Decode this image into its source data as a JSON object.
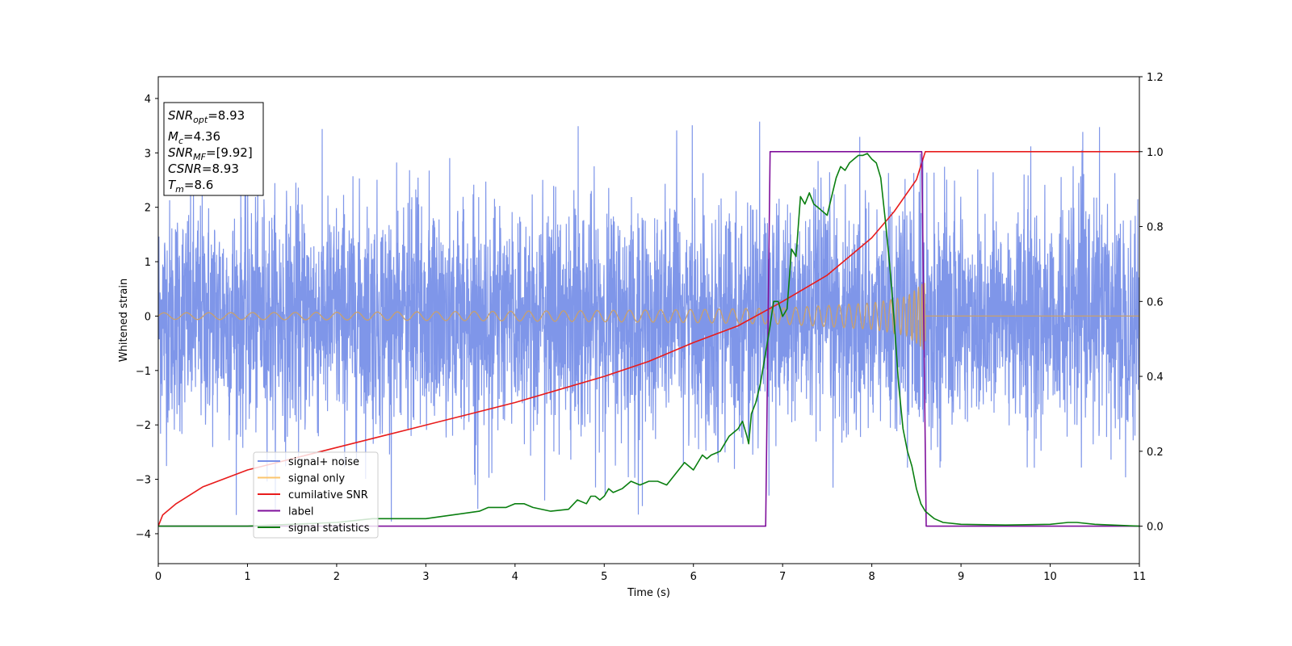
{
  "chart_data": {
    "type": "line",
    "xlabel": "Time (s)",
    "ylabel": "Whitened strain",
    "xlim": [
      0,
      11
    ],
    "ylim_left": [
      -4.55,
      4.4
    ],
    "ylim_right": [
      -0.1,
      1.2
    ],
    "x_ticks": [
      "0",
      "1",
      "2",
      "3",
      "4",
      "5",
      "6",
      "7",
      "8",
      "9",
      "10",
      "11"
    ],
    "y_left_ticks": [
      "4",
      "3",
      "2",
      "1",
      "0",
      "−1",
      "−2",
      "−3",
      "−4"
    ],
    "y_right_ticks": [
      "1.2",
      "1.0",
      "0.8",
      "0.6",
      "0.4",
      "0.2",
      "0.0"
    ],
    "legend": {
      "location": "lower-left",
      "entries": [
        {
          "label": "signal+ noise",
          "color": "#7890e8"
        },
        {
          "label": "signal only",
          "color": "#fbc46e"
        },
        {
          "label": "cumilative SNR",
          "color": "#e81c1c"
        },
        {
          "label": "label",
          "color": "#7f0f9b"
        },
        {
          "label": "signal statistics",
          "color": "#0a7f10"
        }
      ]
    },
    "annotation": [
      {
        "name": "SNR",
        "sub": "opt",
        "value": "=8.93"
      },
      {
        "name": "M",
        "sub": "c",
        "value": "=4.36"
      },
      {
        "name": "SNR",
        "sub": "MF",
        "value": "=[9.92]"
      },
      {
        "name": "CSNR",
        "sub": "",
        "value": "=8.93"
      },
      {
        "name": "T",
        "sub": "m",
        "value": "=8.6"
      }
    ],
    "series": [
      {
        "name": "signal+ noise",
        "axis": "left",
        "color": "#7890e8",
        "noise_envelope": {
          "x": [
            0,
            11
          ],
          "approx_range": [
            -3.9,
            3.6
          ]
        }
      },
      {
        "name": "signal only",
        "axis": "left",
        "color": "#c8a06e",
        "chirp": {
          "x_start": 0,
          "x_end": 8.6,
          "envelope_x": [
            0,
            2,
            4,
            6,
            7,
            8,
            8.4,
            8.6
          ],
          "envelope_amp": [
            0.06,
            0.07,
            0.09,
            0.12,
            0.15,
            0.24,
            0.36,
            0.65
          ]
        }
      },
      {
        "name": "cumilative SNR",
        "axis": "right",
        "color": "#e81c1c",
        "x": [
          0,
          0.05,
          0.2,
          0.5,
          1,
          1.5,
          2,
          2.5,
          3,
          3.5,
          4,
          4.5,
          5,
          5.5,
          6,
          6.5,
          7,
          7.5,
          8,
          8.25,
          8.5,
          8.6,
          11
        ],
        "y": [
          0.0,
          0.03,
          0.06,
          0.105,
          0.15,
          0.18,
          0.21,
          0.24,
          0.27,
          0.3,
          0.33,
          0.365,
          0.4,
          0.44,
          0.49,
          0.535,
          0.6,
          0.67,
          0.77,
          0.84,
          0.925,
          1.0,
          1.0
        ]
      },
      {
        "name": "label",
        "axis": "right",
        "color": "#7f0f9b",
        "x": [
          0,
          6.81,
          6.86,
          8.56,
          8.61,
          11
        ],
        "y": [
          0,
          0,
          1,
          1,
          0,
          0
        ]
      },
      {
        "name": "signal statistics",
        "axis": "right",
        "color": "#0a7f10",
        "x": [
          0,
          1,
          2,
          2.4,
          2.5,
          3,
          3.3,
          3.6,
          3.7,
          3.9,
          4,
          4.1,
          4.2,
          4.4,
          4.6,
          4.7,
          4.8,
          4.85,
          4.9,
          4.95,
          5.0,
          5.05,
          5.1,
          5.2,
          5.3,
          5.4,
          5.5,
          5.6,
          5.7,
          5.8,
          5.9,
          6.0,
          6.1,
          6.15,
          6.2,
          6.3,
          6.4,
          6.5,
          6.55,
          6.6,
          6.62,
          6.65,
          6.7,
          6.75,
          6.8,
          6.85,
          6.9,
          6.95,
          7.0,
          7.05,
          7.1,
          7.15,
          7.2,
          7.25,
          7.3,
          7.35,
          7.4,
          7.5,
          7.55,
          7.6,
          7.65,
          7.7,
          7.75,
          7.8,
          7.85,
          7.9,
          7.95,
          8.0,
          8.05,
          8.1,
          8.15,
          8.2,
          8.25,
          8.3,
          8.35,
          8.4,
          8.45,
          8.5,
          8.55,
          8.6,
          8.65,
          8.7,
          8.8,
          9.0,
          9.5,
          10,
          10.2,
          10.3,
          10.5,
          11
        ],
        "y": [
          0.0,
          0.0,
          0.01,
          0.02,
          0.02,
          0.02,
          0.03,
          0.04,
          0.05,
          0.05,
          0.06,
          0.06,
          0.05,
          0.04,
          0.045,
          0.07,
          0.06,
          0.08,
          0.08,
          0.07,
          0.08,
          0.1,
          0.09,
          0.1,
          0.12,
          0.11,
          0.12,
          0.12,
          0.11,
          0.14,
          0.17,
          0.15,
          0.19,
          0.18,
          0.19,
          0.2,
          0.24,
          0.26,
          0.28,
          0.24,
          0.22,
          0.3,
          0.33,
          0.38,
          0.45,
          0.52,
          0.6,
          0.6,
          0.56,
          0.58,
          0.74,
          0.72,
          0.88,
          0.86,
          0.89,
          0.86,
          0.85,
          0.83,
          0.88,
          0.93,
          0.96,
          0.95,
          0.97,
          0.98,
          0.99,
          0.99,
          0.995,
          0.98,
          0.97,
          0.93,
          0.82,
          0.7,
          0.55,
          0.38,
          0.26,
          0.2,
          0.16,
          0.1,
          0.06,
          0.04,
          0.03,
          0.02,
          0.01,
          0.005,
          0.003,
          0.005,
          0.01,
          0.01,
          0.005,
          0.0
        ]
      }
    ]
  }
}
